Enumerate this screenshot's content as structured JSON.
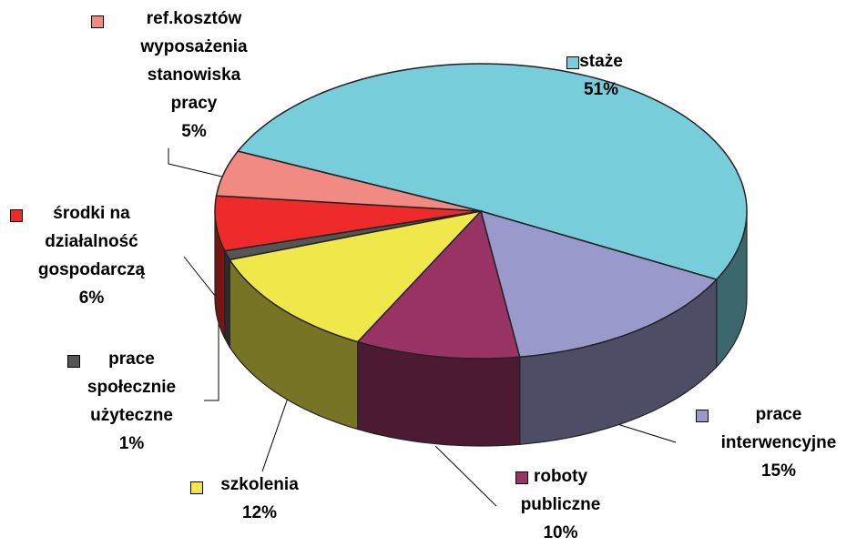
{
  "chart_data": {
    "type": "pie",
    "categories": [
      "staże",
      "prace interwencyjne",
      "roboty publiczne",
      "szkolenia",
      "prace społecznie użyteczne",
      "środki na działalność gospodarczą",
      "ref.kosztów wyposażenia stanowiska pracy"
    ],
    "values": [
      51,
      15,
      10,
      12,
      1,
      6,
      5
    ],
    "value_labels": [
      "51%",
      "15%",
      "10%",
      "12%",
      "1%",
      "6%",
      "5%"
    ],
    "colors": [
      "#77cdd9",
      "#9a99cc",
      "#993366",
      "#f0e84a",
      "#555555",
      "#ee2a2a",
      "#f28a84"
    ]
  }
}
